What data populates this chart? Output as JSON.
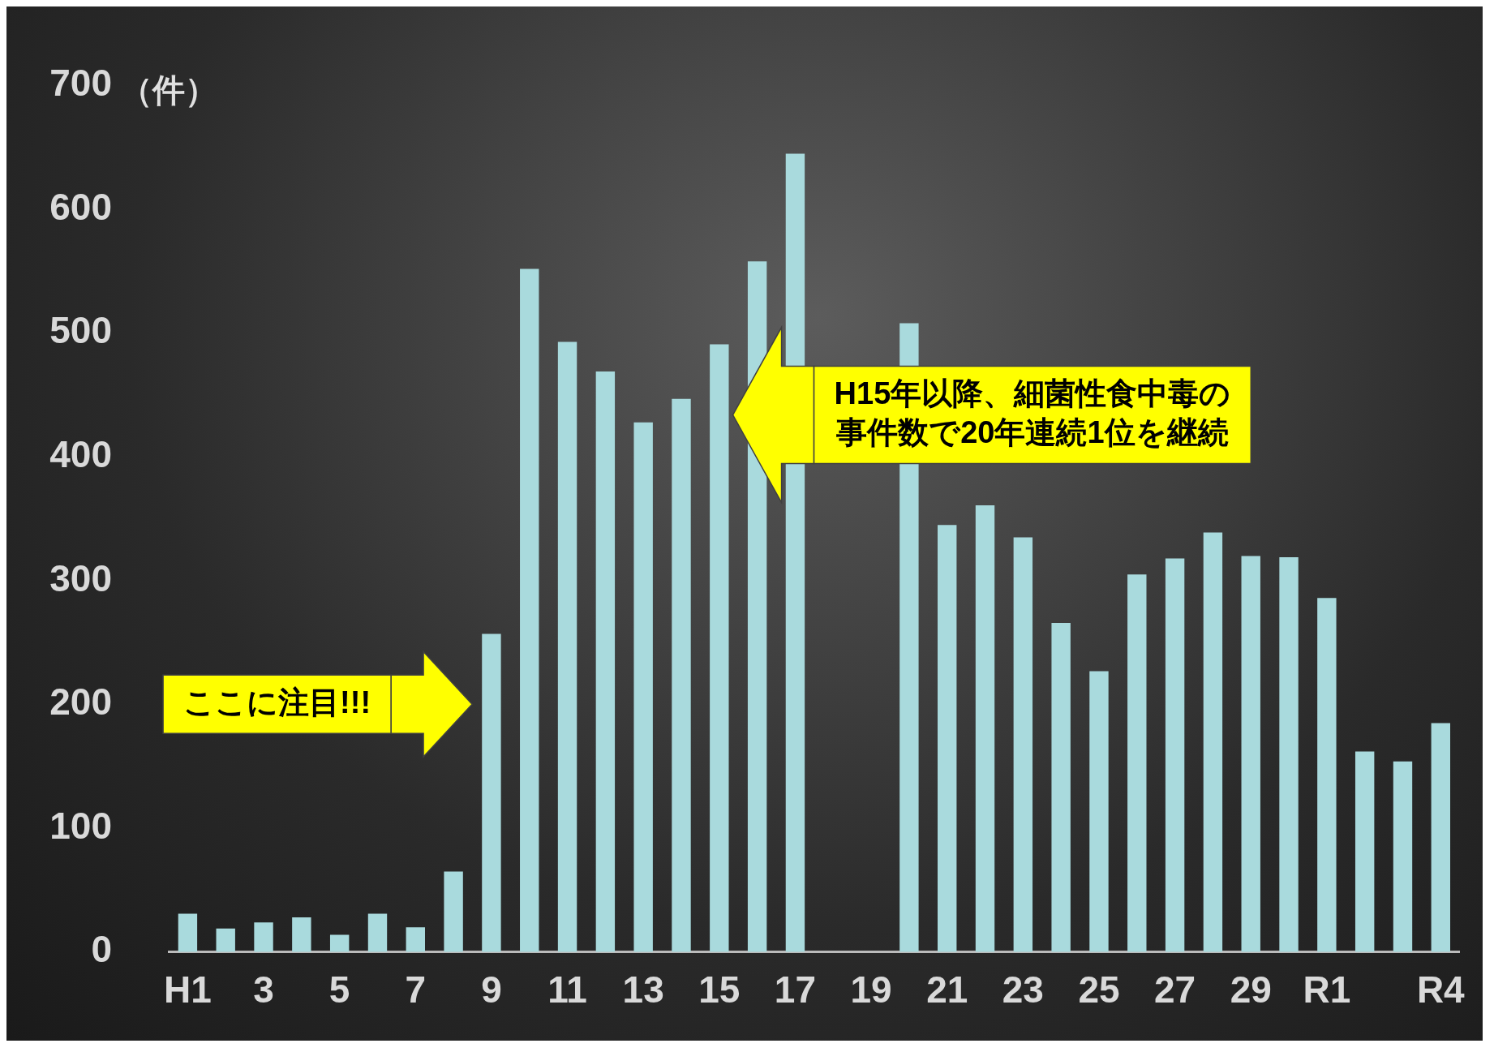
{
  "chart_data": {
    "type": "bar",
    "ylabel": "（件）",
    "categories": [
      "H1",
      null,
      "3",
      null,
      "5",
      null,
      "7",
      null,
      "9",
      null,
      "11",
      null,
      "13",
      null,
      "15",
      null,
      "17",
      null,
      "19",
      null,
      "21",
      null,
      "23",
      null,
      "25",
      null,
      "27",
      null,
      "29",
      null,
      "R1",
      null,
      null,
      "R4"
    ],
    "values": [
      31,
      19,
      24,
      28,
      14,
      31,
      20,
      65,
      257,
      552,
      493,
      469,
      428,
      447,
      491,
      558,
      645,
      null,
      null,
      508,
      345,
      361,
      335,
      266,
      227,
      305,
      318,
      339,
      320,
      319,
      286,
      162,
      154,
      185
    ],
    "color": "#a9dadd",
    "ylim": [
      0,
      700
    ],
    "yticks": [
      0,
      100,
      200,
      300,
      400,
      500,
      600,
      700
    ],
    "grid": false,
    "legend": false,
    "annotations": [
      "ここに注目!!!",
      "H15年以降、細菌性食中毒の事件数で20年連続1位を継続"
    ]
  }
}
